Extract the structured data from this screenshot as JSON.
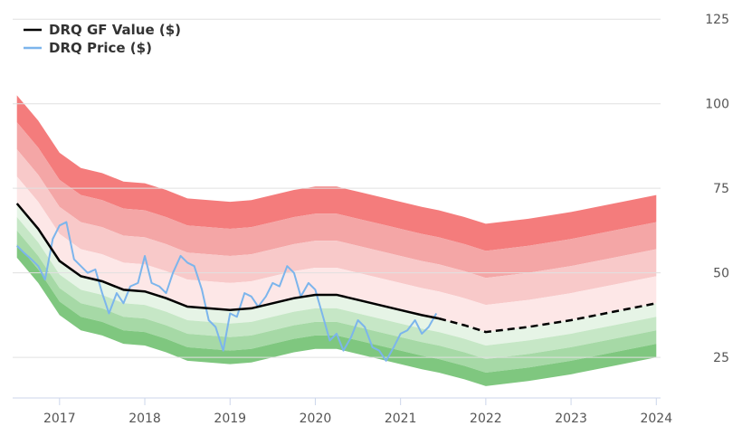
{
  "chart_data": {
    "type": "line",
    "title": "",
    "xlabel": "",
    "ylabel": "",
    "xlim": [
      2016.45,
      2024.05
    ],
    "ylim": [
      13,
      128
    ],
    "y_axis_side": "right",
    "x_ticks": [
      2017,
      2018,
      2019,
      2020,
      2021,
      2022,
      2023,
      2024
    ],
    "x_tick_labels": [
      "2017",
      "2018",
      "2019",
      "2020",
      "2021",
      "2022",
      "2023",
      "2024"
    ],
    "y_ticks": [
      25,
      50,
      75,
      100,
      125
    ],
    "y_tick_labels": [
      "25",
      "50",
      "75",
      "100",
      "125"
    ],
    "grid": "horizontal",
    "legend_position": "top-left",
    "colors": {
      "gf_value": "#000000",
      "price": "#7cb5ec",
      "band_red": [
        "#f47c7c",
        "#f4a6a6",
        "#f8c9c9",
        "#fde7e7"
      ],
      "band_green": [
        "#e6f4e6",
        "#c6e7c6",
        "#a6d9a6",
        "#7fc77f"
      ]
    },
    "gf_value_series": {
      "name": "DRQ GF Value ($)",
      "x": [
        2016.5,
        2016.75,
        2017.0,
        2017.25,
        2017.5,
        2017.75,
        2018.0,
        2018.25,
        2018.5,
        2018.75,
        2019.0,
        2019.25,
        2019.5,
        2019.75,
        2020.0,
        2020.25,
        2020.5,
        2020.75,
        2021.0,
        2021.25,
        2021.45
      ],
      "y": [
        70.5,
        63,
        53.5,
        49,
        47.5,
        45,
        44.5,
        42.5,
        40,
        39.5,
        39,
        39.5,
        41,
        42.5,
        43.5,
        43.5,
        42,
        40.5,
        39,
        37.5,
        36.5
      ]
    },
    "gf_value_projection": {
      "x": [
        2021.45,
        2021.75,
        2022.0,
        2022.5,
        2023.0,
        2023.5,
        2024.0
      ],
      "y": [
        36.5,
        34.5,
        32.5,
        34,
        36,
        38.5,
        41
      ]
    },
    "price_series": {
      "name": "DRQ Price ($)",
      "x": [
        2016.5,
        2016.58,
        2016.67,
        2016.75,
        2016.83,
        2016.92,
        2017.0,
        2017.08,
        2017.17,
        2017.25,
        2017.33,
        2017.42,
        2017.5,
        2017.58,
        2017.67,
        2017.75,
        2017.83,
        2017.92,
        2018.0,
        2018.08,
        2018.17,
        2018.25,
        2018.33,
        2018.42,
        2018.5,
        2018.58,
        2018.67,
        2018.75,
        2018.83,
        2018.92,
        2019.0,
        2019.08,
        2019.17,
        2019.25,
        2019.33,
        2019.42,
        2019.5,
        2019.58,
        2019.67,
        2019.75,
        2019.83,
        2019.92,
        2020.0,
        2020.08,
        2020.17,
        2020.25,
        2020.33,
        2020.42,
        2020.5,
        2020.58,
        2020.67,
        2020.75,
        2020.83,
        2020.92,
        2021.0,
        2021.08,
        2021.17,
        2021.25,
        2021.33,
        2021.42
      ],
      "y": [
        58,
        56,
        54,
        52,
        48,
        60,
        64,
        65,
        54,
        52,
        50,
        51,
        44,
        38,
        44,
        41,
        46,
        47,
        55,
        47,
        46,
        44,
        50,
        55,
        53,
        52,
        45,
        36,
        34,
        27,
        38,
        37,
        44,
        43,
        40,
        43,
        47,
        46,
        52,
        50,
        43,
        47,
        45,
        38,
        30,
        32,
        27,
        31,
        36,
        34,
        28,
        27,
        24,
        28,
        32,
        33,
        36,
        32,
        34,
        38
      ]
    },
    "bands": {
      "upper_offsets": [
        8,
        16,
        24,
        32
      ],
      "lower_offsets": [
        4,
        8,
        12,
        16
      ]
    },
    "legend": [
      "DRQ GF Value ($)",
      "DRQ Price ($)"
    ]
  }
}
